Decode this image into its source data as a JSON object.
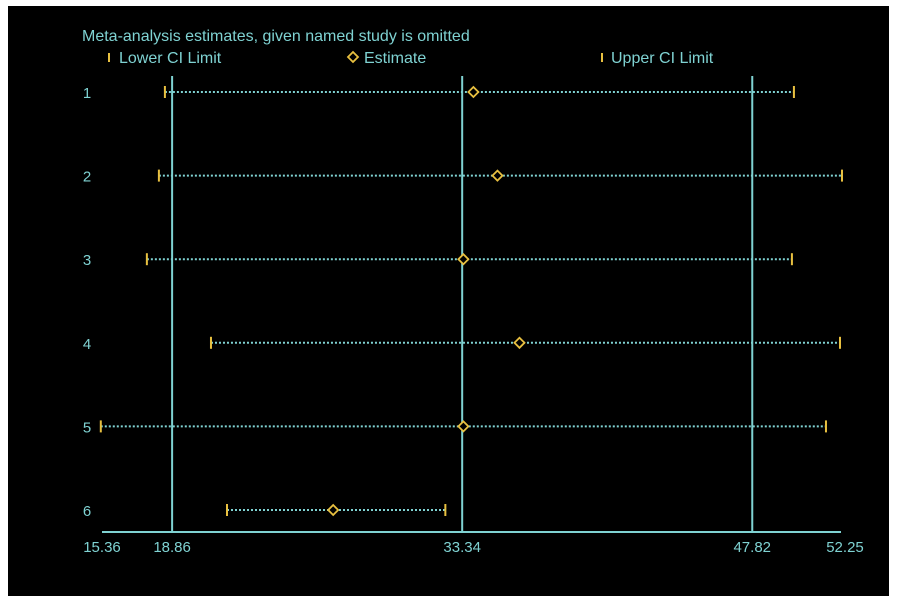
{
  "chart_data": {
    "type": "forest",
    "title": "Meta-analysis estimates, given named study is omitted",
    "legend": [
      {
        "key": "lower",
        "label": "Lower CI Limit",
        "symbol": "tick"
      },
      {
        "key": "estimate",
        "label": "Estimate",
        "symbol": "diamond"
      },
      {
        "key": "upper",
        "label": "Upper CI Limit",
        "symbol": "tick"
      }
    ],
    "legend_position": "top",
    "x_ticks": [
      "15.36",
      "18.86",
      "33.34",
      "47.82",
      "52.25"
    ],
    "x_ticks_values": [
      15.36,
      18.86,
      33.34,
      47.82,
      52.25
    ],
    "x_range": [
      15.36,
      52.25
    ],
    "reference_lines": [
      18.86,
      33.34,
      47.82
    ],
    "studies": [
      {
        "label": "1",
        "lower": 18.5,
        "estimate": 33.9,
        "upper": 49.9
      },
      {
        "label": "2",
        "lower": 18.2,
        "estimate": 35.1,
        "upper": 52.3
      },
      {
        "label": "3",
        "lower": 17.6,
        "estimate": 33.4,
        "upper": 49.8
      },
      {
        "label": "4",
        "lower": 20.8,
        "estimate": 36.2,
        "upper": 52.2
      },
      {
        "label": "5",
        "lower": 15.3,
        "estimate": 33.4,
        "upper": 51.5
      },
      {
        "label": "6",
        "lower": 21.6,
        "estimate": 26.9,
        "upper": 32.5
      }
    ],
    "colors": {
      "background": "#000000",
      "axis": "#7fd2d2",
      "text": "#7fd2d2",
      "marker": "#e8c040"
    }
  }
}
